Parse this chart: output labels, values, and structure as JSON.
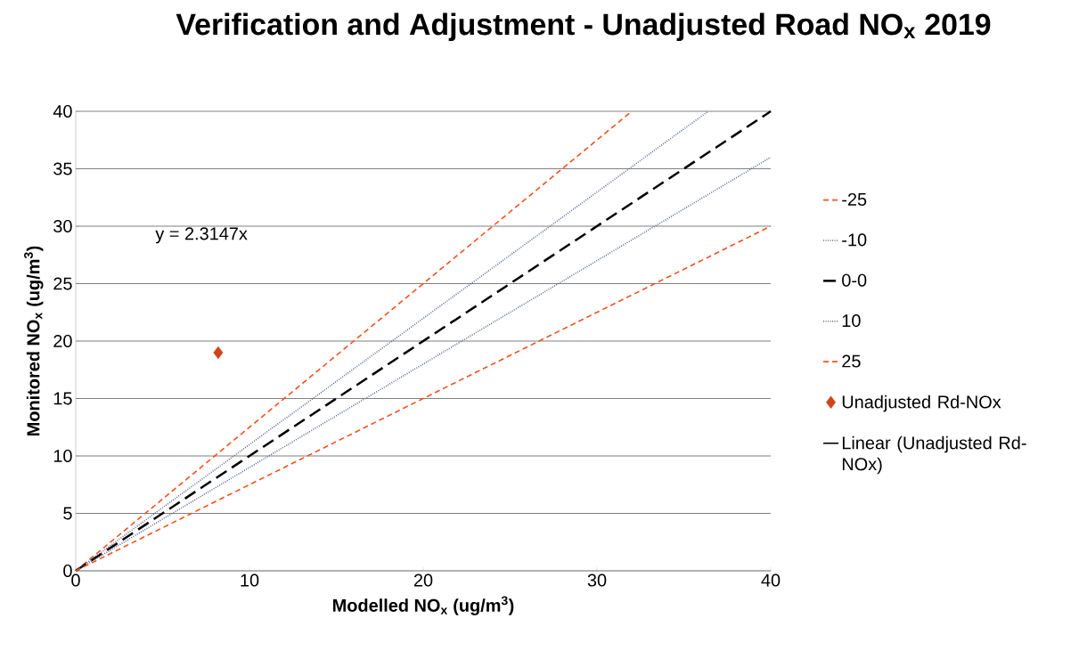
{
  "chart_data": {
    "type": "line",
    "title": "Verification and Adjustment - Unadjusted Road NO$_{x}$ 2019",
    "xlabel": "Modelled NO$_{x}$ (ug/m$^{3}$)",
    "ylabel": "Monitored NO$_{x}$ (ug/m$^{3}$)",
    "xlim": [
      0,
      40
    ],
    "ylim": [
      0,
      40
    ],
    "xticks": [
      0,
      10,
      20,
      30,
      40
    ],
    "yticks": [
      0,
      5,
      10,
      15,
      20,
      25,
      30,
      35,
      40
    ],
    "grid": "y",
    "legend": "right",
    "annotations": [
      "y = 2.3147x"
    ],
    "series": [
      {
        "name": "-25",
        "color": "#f4511e",
        "line_style": "dashed",
        "x": [
          0,
          32
        ],
        "values": [
          0,
          40
        ]
      },
      {
        "name": "-10",
        "color": "#5a6a8a",
        "line_style": "dotted",
        "x": [
          0,
          36.4
        ],
        "values": [
          0,
          40
        ]
      },
      {
        "name": "0-0",
        "color": "#000000",
        "line_style": "dashed",
        "x": [
          0,
          40
        ],
        "values": [
          0,
          40
        ]
      },
      {
        "name": "10",
        "color": "#5a6a8a",
        "line_style": "dotted",
        "x": [
          0,
          40
        ],
        "values": [
          0,
          36
        ]
      },
      {
        "name": "25",
        "color": "#f4511e",
        "line_style": "dashed",
        "x": [
          0,
          40
        ],
        "values": [
          0,
          30
        ]
      },
      {
        "name": "Unadjusted Rd-NOx",
        "type": "scatter",
        "color": "#d0451b",
        "marker": "diamond",
        "x": [
          8.2
        ],
        "values": [
          19
        ]
      },
      {
        "name": "Linear (Unadjusted Rd-NOx)",
        "color": "#000000",
        "line_style": "solid"
      }
    ]
  }
}
